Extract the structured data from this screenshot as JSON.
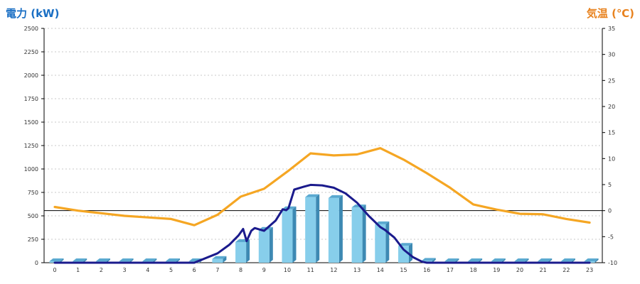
{
  "chart_data": {
    "type": "bar",
    "title": "",
    "ylabel_left": "電力 (kW)",
    "ylabel_right": "気温 (℃)",
    "categories": [
      "0",
      "1",
      "2",
      "3",
      "4",
      "5",
      "6",
      "7",
      "8",
      "9",
      "10",
      "11",
      "12",
      "13",
      "14",
      "15",
      "16",
      "17",
      "18",
      "19",
      "20",
      "21",
      "22",
      "23"
    ],
    "ylim_left": [
      0,
      2500
    ],
    "ylim_right": [
      -10,
      35
    ],
    "yticks_left": [
      0,
      250,
      500,
      750,
      1000,
      1250,
      1500,
      1750,
      2000,
      2250,
      2500
    ],
    "yticks_right": [
      -10,
      -5,
      0,
      5,
      10,
      15,
      20,
      25,
      30,
      35
    ],
    "grid": "horizontal dotted",
    "series": [
      {
        "kind": "bar",
        "axis": "left",
        "color": "#87ceeb",
        "values": [
          0,
          0,
          0,
          0,
          0,
          0,
          0,
          40,
          220,
          350,
          570,
          700,
          690,
          590,
          410,
          180,
          20,
          0,
          0,
          0,
          0,
          0,
          0,
          0
        ]
      },
      {
        "kind": "line",
        "axis": "left",
        "color": "#1a1a8c",
        "x": [
          0,
          1,
          2,
          3,
          4,
          5,
          6,
          7,
          7.5,
          7.9,
          8.1,
          8.25,
          8.45,
          8.6,
          9,
          9.5,
          9.8,
          9.95,
          10.05,
          10.3,
          10.7,
          11,
          11.5,
          12,
          12.5,
          13,
          13.5,
          14,
          14.2,
          14.6,
          15,
          15.4,
          15.8,
          16,
          17,
          18,
          19,
          20,
          21,
          22,
          23
        ],
        "values": [
          0,
          0,
          0,
          0,
          0,
          0,
          0,
          100,
          190,
          290,
          360,
          230,
          340,
          370,
          340,
          450,
          570,
          560,
          580,
          780,
          810,
          830,
          825,
          800,
          740,
          640,
          500,
          380,
          350,
          270,
          140,
          60,
          10,
          0,
          0,
          0,
          0,
          0,
          0,
          0,
          0
        ]
      },
      {
        "kind": "line",
        "axis": "right",
        "color": "#f5a623",
        "values": [
          0.7,
          0.0,
          -0.5,
          -1.0,
          -1.3,
          -1.6,
          -2.8,
          -0.8,
          2.7,
          4.2,
          7.5,
          11.0,
          10.6,
          10.8,
          12.0,
          9.8,
          7.2,
          4.4,
          1.2,
          0.2,
          -0.6,
          -0.7,
          -1.6,
          -2.3
        ]
      }
    ]
  }
}
